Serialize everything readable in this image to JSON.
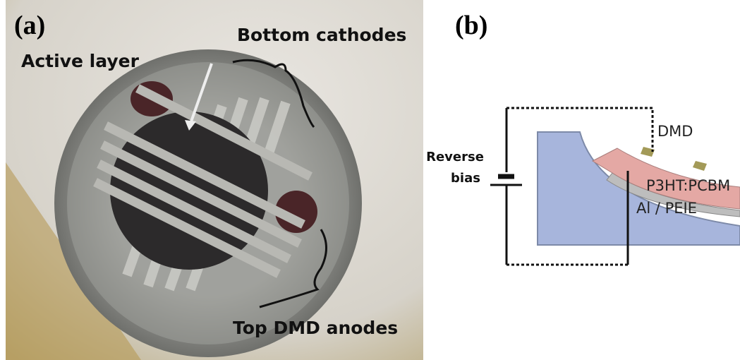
{
  "panel_a": {
    "label": "(a)",
    "annotations": {
      "bottom": "Bottom cathodes",
      "active": "Active layer",
      "top": "Top DMD anodes"
    }
  },
  "panel_b": {
    "label": "(b)",
    "bias": [
      "Reverse",
      "bias"
    ],
    "dmd": "DMD",
    "active": "P3HT:PCBM",
    "cathode": "Al / PEIE"
  }
}
